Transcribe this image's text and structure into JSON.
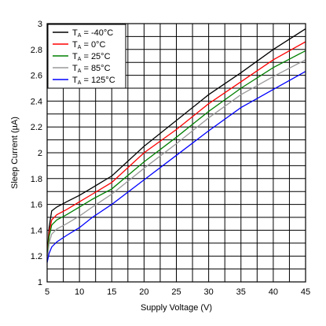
{
  "chart_data": {
    "type": "line",
    "xlabel": "Supply Voltage (V)",
    "ylabel": "Sleep Current (µA)",
    "xlim": [
      5,
      45
    ],
    "ylim": [
      1,
      3
    ],
    "xticks": [
      5,
      10,
      15,
      20,
      25,
      30,
      35,
      40,
      45
    ],
    "yticks": [
      1,
      1.2,
      1.4,
      1.6,
      1.8,
      2,
      2.2,
      2.4,
      2.6,
      2.8,
      3
    ],
    "grid": true,
    "legend_placement": "top-left",
    "series": [
      {
        "name": "T_A = -40°C",
        "legend_main": "T",
        "legend_sub": "A",
        "legend_rest": " = -40°C",
        "color": "#000000",
        "x": [
          5,
          5.3,
          5.7,
          6.5,
          8,
          10,
          12,
          15,
          20,
          25,
          30,
          35,
          40,
          45
        ],
        "y": [
          1.2,
          1.42,
          1.55,
          1.58,
          1.62,
          1.67,
          1.73,
          1.82,
          2.05,
          2.25,
          2.45,
          2.62,
          2.8,
          2.96
        ]
      },
      {
        "name": "T_A = 0°C",
        "legend_main": "T",
        "legend_sub": "A",
        "legend_rest": " = 0°C",
        "color": "#ff0000",
        "x": [
          5,
          5.3,
          5.7,
          6.5,
          8,
          10,
          12,
          15,
          20,
          25,
          30,
          35,
          40,
          45
        ],
        "y": [
          1.17,
          1.38,
          1.48,
          1.52,
          1.56,
          1.62,
          1.68,
          1.77,
          2.0,
          2.18,
          2.38,
          2.55,
          2.72,
          2.86
        ]
      },
      {
        "name": "T_A = 25°C",
        "legend_main": "T",
        "legend_sub": "A",
        "legend_rest": " = 25°C",
        "color": "#008000",
        "x": [
          5,
          5.3,
          5.7,
          6.5,
          8,
          10,
          12,
          15,
          20,
          25,
          30,
          35,
          40,
          45
        ],
        "y": [
          1.16,
          1.35,
          1.44,
          1.48,
          1.52,
          1.58,
          1.64,
          1.72,
          1.93,
          2.12,
          2.32,
          2.5,
          2.66,
          2.79
        ]
      },
      {
        "name": "T_A = 85°C",
        "legend_main": "T",
        "legend_sub": "A",
        "legend_rest": " = 85°C",
        "color": "#999999",
        "x": [
          5,
          5.3,
          5.7,
          6.5,
          8,
          10,
          12,
          15,
          20,
          25,
          30,
          35,
          40,
          45
        ],
        "y": [
          1.15,
          1.3,
          1.37,
          1.41,
          1.45,
          1.51,
          1.58,
          1.68,
          1.88,
          2.07,
          2.27,
          2.45,
          2.59,
          2.72
        ]
      },
      {
        "name": "T_A = 125°C",
        "legend_main": "T",
        "legend_sub": "A",
        "legend_rest": " = 125°C",
        "color": "#0000ff",
        "x": [
          5,
          5.3,
          5.7,
          6.5,
          8,
          10,
          12,
          15,
          20,
          25,
          30,
          35,
          40,
          45
        ],
        "y": [
          1.15,
          1.22,
          1.27,
          1.31,
          1.36,
          1.42,
          1.5,
          1.6,
          1.79,
          1.98,
          2.17,
          2.35,
          2.49,
          2.63
        ]
      }
    ]
  }
}
